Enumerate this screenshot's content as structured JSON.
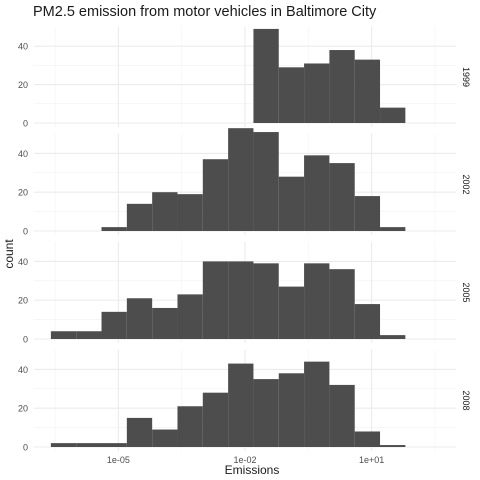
{
  "chart_data": {
    "type": "bar",
    "title": "PM2.5 emission from motor vehicles in Baltimore City",
    "xlabel": "Emissions",
    "ylabel": "count",
    "x_scale": "log10",
    "x_ticks": [
      {
        "value": 1e-05,
        "label": "1e-05"
      },
      {
        "value": 0.01,
        "label": "1e-02"
      },
      {
        "value": 10,
        "label": "1e+01"
      }
    ],
    "x_domain": [
      1e-07,
      1000
    ],
    "ylim": [
      0,
      50
    ],
    "y_ticks": [
      0,
      20,
      40
    ],
    "bin_edges_log10": [
      -6.6,
      -6.0,
      -5.4,
      -4.8,
      -4.2,
      -3.6,
      -3.0,
      -2.4,
      -1.8,
      -1.2,
      -0.6,
      0.0,
      0.6,
      1.2,
      1.8
    ],
    "panels": [
      {
        "label": "1999",
        "counts": [
          0,
          0,
          0,
          0,
          0,
          0,
          0,
          0,
          49,
          29,
          31,
          38,
          33,
          8,
          2
        ]
      },
      {
        "label": "2002",
        "counts": [
          0,
          0,
          2,
          14,
          20,
          19,
          37,
          53,
          51,
          28,
          39,
          35,
          18,
          2,
          0
        ]
      },
      {
        "label": "2005",
        "counts": [
          4,
          4,
          14,
          21,
          16,
          23,
          40,
          40,
          39,
          27,
          39,
          36,
          18,
          2,
          0
        ]
      },
      {
        "label": "2008",
        "counts": [
          2,
          2,
          2,
          15,
          9,
          21,
          28,
          43,
          35,
          38,
          44,
          32,
          8,
          1,
          0
        ]
      }
    ],
    "bar_color": "#4d4d4d",
    "grid": true,
    "legend": "none"
  }
}
